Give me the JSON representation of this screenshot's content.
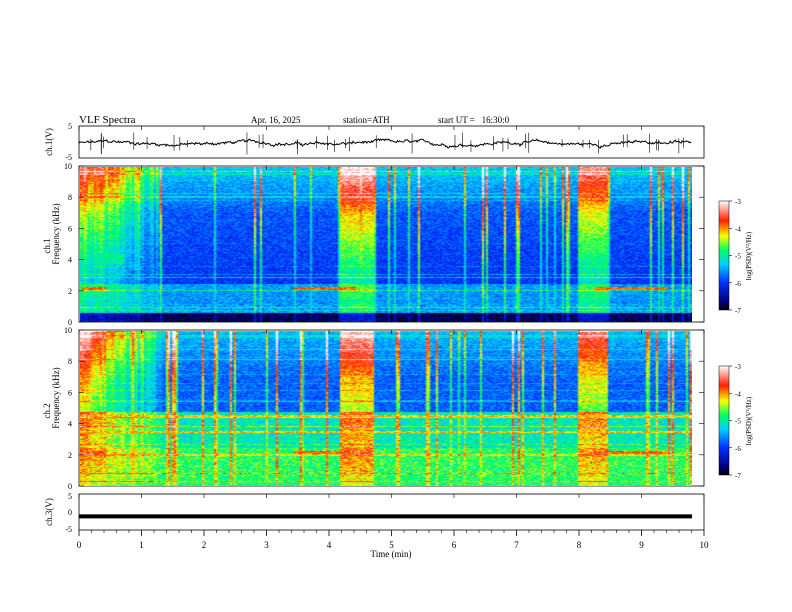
{
  "header": {
    "title": "VLF Spectra",
    "date": "Apr. 16, 2025",
    "station": "station=ATH",
    "start_ut": "start UT =   16:30:0"
  },
  "chart_data": [
    {
      "type": "line",
      "name": "ch1-waveform",
      "ylabel": "ch.1(V)",
      "ylim": [
        -5,
        5
      ],
      "yticks": [
        "5",
        "-5"
      ],
      "xlim": [
        0,
        10
      ],
      "line_color": "#000000"
    },
    {
      "type": "heatmap",
      "name": "ch1-spectrogram",
      "ylabel": "ch.1",
      "ylabel2": "Frequency (kHz)",
      "ylim": [
        0,
        10
      ],
      "yticks": [
        "0",
        "2",
        "4",
        "6",
        "8",
        "10"
      ],
      "xlim": [
        0,
        9.8
      ],
      "colorbar": {
        "label": "log(PSD)(V²/Hz)",
        "range": [
          -7,
          -3
        ],
        "ticks": [
          "-3",
          "-4",
          "-5",
          "-6",
          "-7"
        ]
      }
    },
    {
      "type": "heatmap",
      "name": "ch2-spectrogram",
      "ylabel": "ch.2",
      "ylabel2": "Frequency (kHz)",
      "ylim": [
        0,
        10
      ],
      "yticks": [
        "0",
        "2",
        "4",
        "6",
        "8",
        "10"
      ],
      "xlim": [
        0,
        9.8
      ],
      "colorbar": {
        "label": "log(PSD)(V²/Hz)",
        "range": [
          -7,
          -3
        ],
        "ticks": [
          "-3",
          "-4",
          "-5",
          "-6",
          "-7"
        ]
      }
    },
    {
      "type": "line",
      "name": "ch3-waveform",
      "ylabel": "ch.3(V)",
      "ylim": [
        -5,
        5
      ],
      "yticks": [
        "5",
        "0",
        "-5"
      ],
      "xlim": [
        0,
        10
      ],
      "level": -1.2,
      "line_color": "#000000"
    }
  ],
  "x_axis": {
    "label": "Time (min)",
    "ticks": [
      "0",
      "1",
      "2",
      "3",
      "4",
      "5",
      "6",
      "7",
      "8",
      "9",
      "10"
    ]
  }
}
